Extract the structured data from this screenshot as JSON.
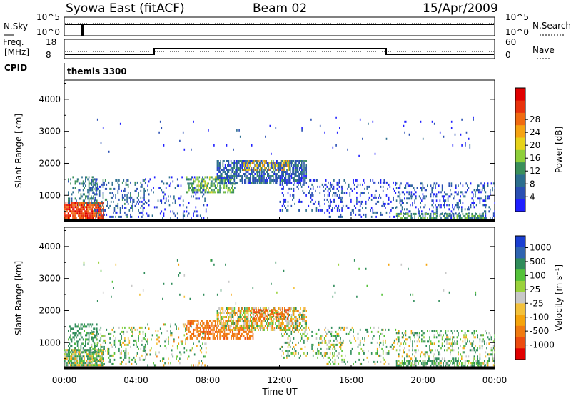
{
  "header": {
    "station": "Syowa East (fitACF)",
    "beam": "Beam 02",
    "date": "15/Apr/2009"
  },
  "top_panels": {
    "nsky_label": "N.Sky",
    "nsky_ticks": [
      "10^5",
      "10^0"
    ],
    "nsearch_label": "N.Search",
    "nsearch_ticks": [
      "10^5",
      "10^0"
    ],
    "freq_label_1": "Freq.",
    "freq_label_2": "[MHz]",
    "freq_ticks": [
      "18",
      "8"
    ],
    "nave_label": "Nave",
    "nave_ticks": [
      "60",
      "0"
    ],
    "cpid_label": "CPID",
    "cpid_value": "themis 3300"
  },
  "chart_data": [
    {
      "type": "heatmap",
      "name": "power",
      "ylabel": "Slant Range [km]",
      "yticks": [
        1000,
        2000,
        3000,
        4000
      ],
      "ylim": [
        180,
        4600
      ],
      "xlim": [
        0,
        24
      ],
      "colorbar": {
        "label": "Power [dB]",
        "ticks": [
          "4",
          "8",
          "12",
          "16",
          "20",
          "24",
          "28"
        ],
        "colors": [
          "#1f1fff",
          "#2a4fb3",
          "#2c6e8e",
          "#3a8f5a",
          "#8ecf3a",
          "#e6d21a",
          "#f5a312",
          "#f06a10",
          "#e8320c",
          "#e00000"
        ]
      },
      "regions": [
        {
          "t0": 0.0,
          "t1": 2.2,
          "r0": 300,
          "r1": 800,
          "power": 27,
          "density": 0.85
        },
        {
          "t0": 0.2,
          "t1": 1.8,
          "r0": 700,
          "r1": 1600,
          "power": 10,
          "density": 0.35
        },
        {
          "t0": 1.5,
          "t1": 4.5,
          "r0": 300,
          "r1": 1500,
          "power": 8,
          "density": 0.25
        },
        {
          "t0": 4.5,
          "t1": 8.0,
          "r0": 300,
          "r1": 1600,
          "power": 6,
          "density": 0.12
        },
        {
          "t0": 6.8,
          "t1": 9.5,
          "r0": 1100,
          "r1": 1600,
          "power": 14,
          "density": 0.5
        },
        {
          "t0": 8.5,
          "t1": 13.5,
          "r0": 1400,
          "r1": 2100,
          "power": 8,
          "density": 0.7
        },
        {
          "t0": 10.0,
          "t1": 12.5,
          "r0": 1800,
          "r1": 2100,
          "power": 20,
          "density": 0.35
        },
        {
          "t0": 12.0,
          "t1": 15.5,
          "r0": 500,
          "r1": 1500,
          "power": 6,
          "density": 0.18
        },
        {
          "t0": 14.5,
          "t1": 18.5,
          "r0": 300,
          "r1": 1500,
          "power": 6,
          "density": 0.18
        },
        {
          "t0": 18.5,
          "t1": 24.0,
          "r0": 300,
          "r1": 1400,
          "power": 7,
          "density": 0.25
        },
        {
          "t0": 18.5,
          "t1": 23.5,
          "r0": 250,
          "r1": 450,
          "power": 12,
          "density": 0.55
        },
        {
          "t0": 1.0,
          "t1": 23.0,
          "r0": 2200,
          "r1": 3600,
          "power": 5,
          "density": 0.01
        }
      ]
    },
    {
      "type": "heatmap",
      "name": "velocity",
      "ylabel": "Slant Range [km]",
      "yticks": [
        1000,
        2000,
        3000,
        4000
      ],
      "ylim": [
        180,
        4600
      ],
      "xlim": [
        0,
        24
      ],
      "xticks": [
        "00:00",
        "04:00",
        "08:00",
        "12:00",
        "16:00",
        "20:00",
        "00:00"
      ],
      "xlabel": "Time UT",
      "colorbar": {
        "label": "Velocity [m s⁻¹]",
        "ticks": [
          "1000",
          "500",
          "100",
          "25",
          "-25",
          "-100",
          "-500",
          "-1000"
        ],
        "colors": [
          "#1a3fd1",
          "#2f64b0",
          "#2f8c5a",
          "#55c23a",
          "#9ad23c",
          "#c8c8c8",
          "#f3c13a",
          "#f5a40c",
          "#f07a10",
          "#ec4b0f",
          "#e00000"
        ]
      },
      "regions": [
        {
          "t0": 0.0,
          "t1": 2.2,
          "r0": 300,
          "r1": 800,
          "vel": 60,
          "density": 0.85
        },
        {
          "t0": 0.2,
          "t1": 1.8,
          "r0": 700,
          "r1": 1600,
          "vel": 200,
          "density": 0.35
        },
        {
          "t0": 1.5,
          "t1": 4.5,
          "r0": 300,
          "r1": 1500,
          "vel": 80,
          "density": 0.25
        },
        {
          "t0": 4.5,
          "t1": 8.0,
          "r0": 300,
          "r1": 1600,
          "vel": 40,
          "density": 0.12
        },
        {
          "t0": 6.8,
          "t1": 10.5,
          "r0": 1100,
          "r1": 1700,
          "vel": -400,
          "density": 0.55
        },
        {
          "t0": 8.5,
          "t1": 13.5,
          "r0": 1400,
          "r1": 2100,
          "vel": -20,
          "density": 0.6
        },
        {
          "t0": 10.5,
          "t1": 12.5,
          "r0": 1750,
          "r1": 2050,
          "vel": -500,
          "density": 0.45
        },
        {
          "t0": 12.0,
          "t1": 15.5,
          "r0": 500,
          "r1": 1500,
          "vel": 60,
          "density": 0.18
        },
        {
          "t0": 14.5,
          "t1": 18.5,
          "r0": 300,
          "r1": 1500,
          "vel": 50,
          "density": 0.18
        },
        {
          "t0": 18.5,
          "t1": 24.0,
          "r0": 300,
          "r1": 1400,
          "vel": 70,
          "density": 0.25
        },
        {
          "t0": 18.5,
          "t1": 23.5,
          "r0": 250,
          "r1": 450,
          "vel": 120,
          "density": 0.55
        },
        {
          "t0": 1.0,
          "t1": 23.0,
          "r0": 2200,
          "r1": 3600,
          "vel": 80,
          "density": 0.01
        }
      ]
    }
  ]
}
